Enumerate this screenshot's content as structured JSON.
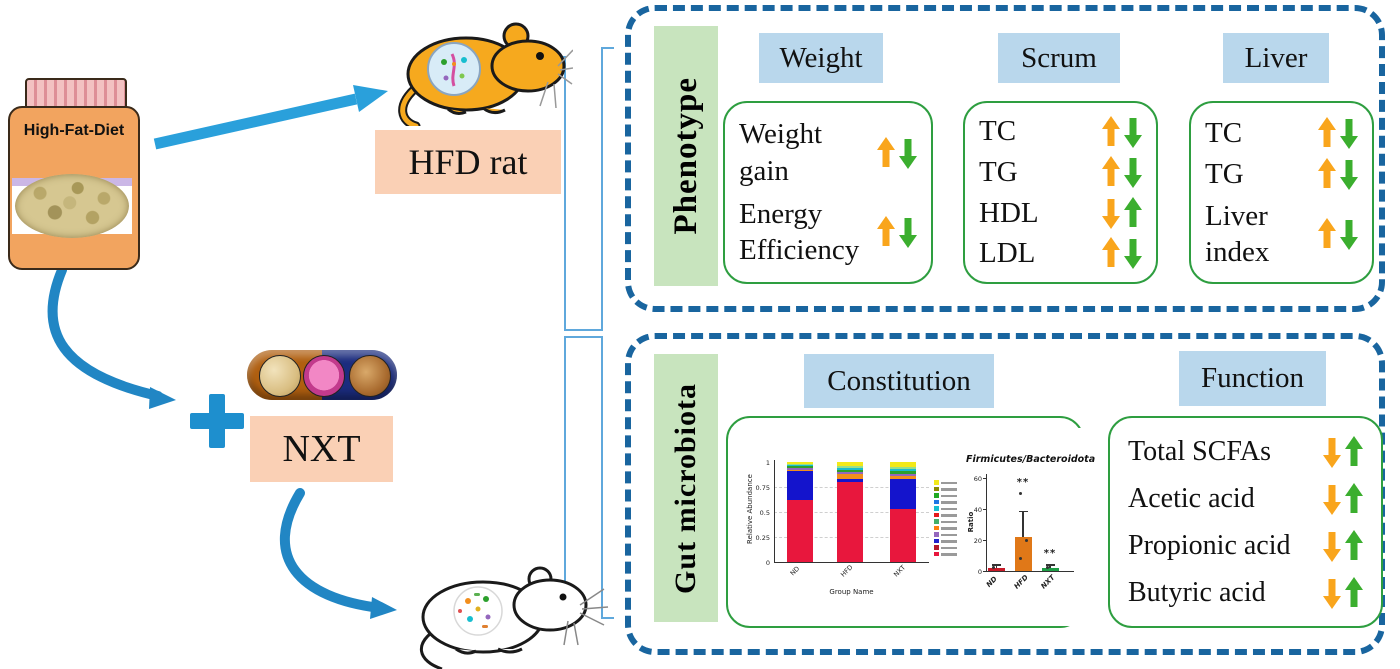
{
  "left_flow": {
    "jar_label": "High-Fat-Diet",
    "hfd_rat_label": "HFD rat",
    "nxt_label": "NXT",
    "flow_arrow_color": "#2aa0db",
    "bracket_color": "#5fa8dc"
  },
  "phenotype_panel": {
    "side_label": "Phenotype",
    "columns": [
      {
        "header": "Weight",
        "rows": [
          {
            "label": "Weight gain",
            "arrows": [
              "up:#F9A51C",
              "down:#3BAE2E"
            ]
          },
          {
            "label": "Energy Efficiency",
            "arrows": [
              "up:#F9A51C",
              "down:#3BAE2E"
            ]
          }
        ]
      },
      {
        "header": "Scrum",
        "rows": [
          {
            "label": "TC",
            "arrows": [
              "up:#F9A51C",
              "down:#3BAE2E"
            ]
          },
          {
            "label": "TG",
            "arrows": [
              "up:#F9A51C",
              "down:#3BAE2E"
            ]
          },
          {
            "label": "HDL",
            "arrows": [
              "down:#F9A51C",
              "up:#3BAE2E"
            ]
          },
          {
            "label": "LDL",
            "arrows": [
              "up:#F9A51C",
              "down:#3BAE2E"
            ]
          }
        ]
      },
      {
        "header": "Liver",
        "rows": [
          {
            "label": "TC",
            "arrows": [
              "up:#F9A51C",
              "down:#3BAE2E"
            ]
          },
          {
            "label": "TG",
            "arrows": [
              "up:#F9A51C",
              "down:#3BAE2E"
            ]
          },
          {
            "label": "Liver index",
            "arrows": [
              "up:#F9A51C",
              "down:#3BAE2E"
            ]
          }
        ]
      }
    ]
  },
  "gut_panel": {
    "side_label": "Gut microbiota",
    "constitution_header": "Constitution",
    "function_header": "Function",
    "function_rows": [
      {
        "label": "Total SCFAs",
        "arrows": [
          "down:#F9A51C",
          "up:#3BAE2E"
        ]
      },
      {
        "label": "Acetic acid",
        "arrows": [
          "down:#F9A51C",
          "up:#3BAE2E"
        ]
      },
      {
        "label": "Propionic acid",
        "arrows": [
          "down:#F9A51C",
          "up:#3BAE2E"
        ]
      },
      {
        "label": "Butyric acid",
        "arrows": [
          "down:#F9A51C",
          "up:#3BAE2E"
        ]
      }
    ]
  },
  "chart_data": [
    {
      "type": "bar",
      "subtype": "stacked",
      "title": "",
      "xlabel": "Group Name",
      "ylabel": "Relative Abundance",
      "categories": [
        "ND",
        "HFD",
        "NXT"
      ],
      "yticks": [
        0,
        0.25,
        0.5,
        0.75,
        1
      ],
      "ylim": [
        0,
        1
      ],
      "grid": true,
      "legend_position": "right",
      "legend_text_legible": false,
      "legend_swatches": [
        "#F2E919",
        "#8B8B00",
        "#22AA22",
        "#1F77E4",
        "#17BECF",
        "#E41A1C",
        "#44AF69",
        "#FF7F0E",
        "#9467BD",
        "#2222CC",
        "#B2182B",
        "#E8173D"
      ],
      "series": [
        {
          "name": "segment-red",
          "color": "#E8173D",
          "values": [
            0.62,
            0.8,
            0.53
          ]
        },
        {
          "name": "segment-blue",
          "color": "#1414CC",
          "values": [
            0.29,
            0.035,
            0.3
          ]
        },
        {
          "name": "segment-orange",
          "color": "#F28E1C",
          "values": [
            0.015,
            0.05,
            0.03
          ]
        },
        {
          "name": "segment-purple",
          "color": "#9467BD",
          "values": [
            0.02,
            0.02,
            0.02
          ]
        },
        {
          "name": "segment-green",
          "color": "#2CA02C",
          "values": [
            0.015,
            0.02,
            0.03
          ]
        },
        {
          "name": "segment-cyan",
          "color": "#17BECF",
          "values": [
            0.01,
            0.015,
            0.02
          ]
        },
        {
          "name": "segment-lightgreen",
          "color": "#98DF8A",
          "values": [
            0.01,
            0.02,
            0.02
          ]
        },
        {
          "name": "segment-yellow",
          "color": "#F2E919",
          "values": [
            0.02,
            0.04,
            0.05
          ]
        }
      ]
    },
    {
      "type": "bar",
      "title": "Firmicutes/Bacteroidota",
      "xlabel": "",
      "ylabel": "Ratio",
      "categories": [
        "ND",
        "HFD",
        "NXT"
      ],
      "values": [
        2,
        22,
        2
      ],
      "errors": [
        1.5,
        16,
        1.5
      ],
      "bar_colors": [
        "#C61A28",
        "#E07818",
        "#1E9E46"
      ],
      "sig_labels": [
        "",
        "**",
        "**"
      ],
      "sig_label_y": [
        0,
        55,
        9
      ],
      "jitter_points": [
        [
          2.5
        ],
        [
          8,
          20,
          50
        ],
        [
          2.5
        ]
      ],
      "yticks": [
        0,
        20,
        40,
        60
      ],
      "ylim": [
        0,
        60
      ],
      "grid": false
    }
  ]
}
